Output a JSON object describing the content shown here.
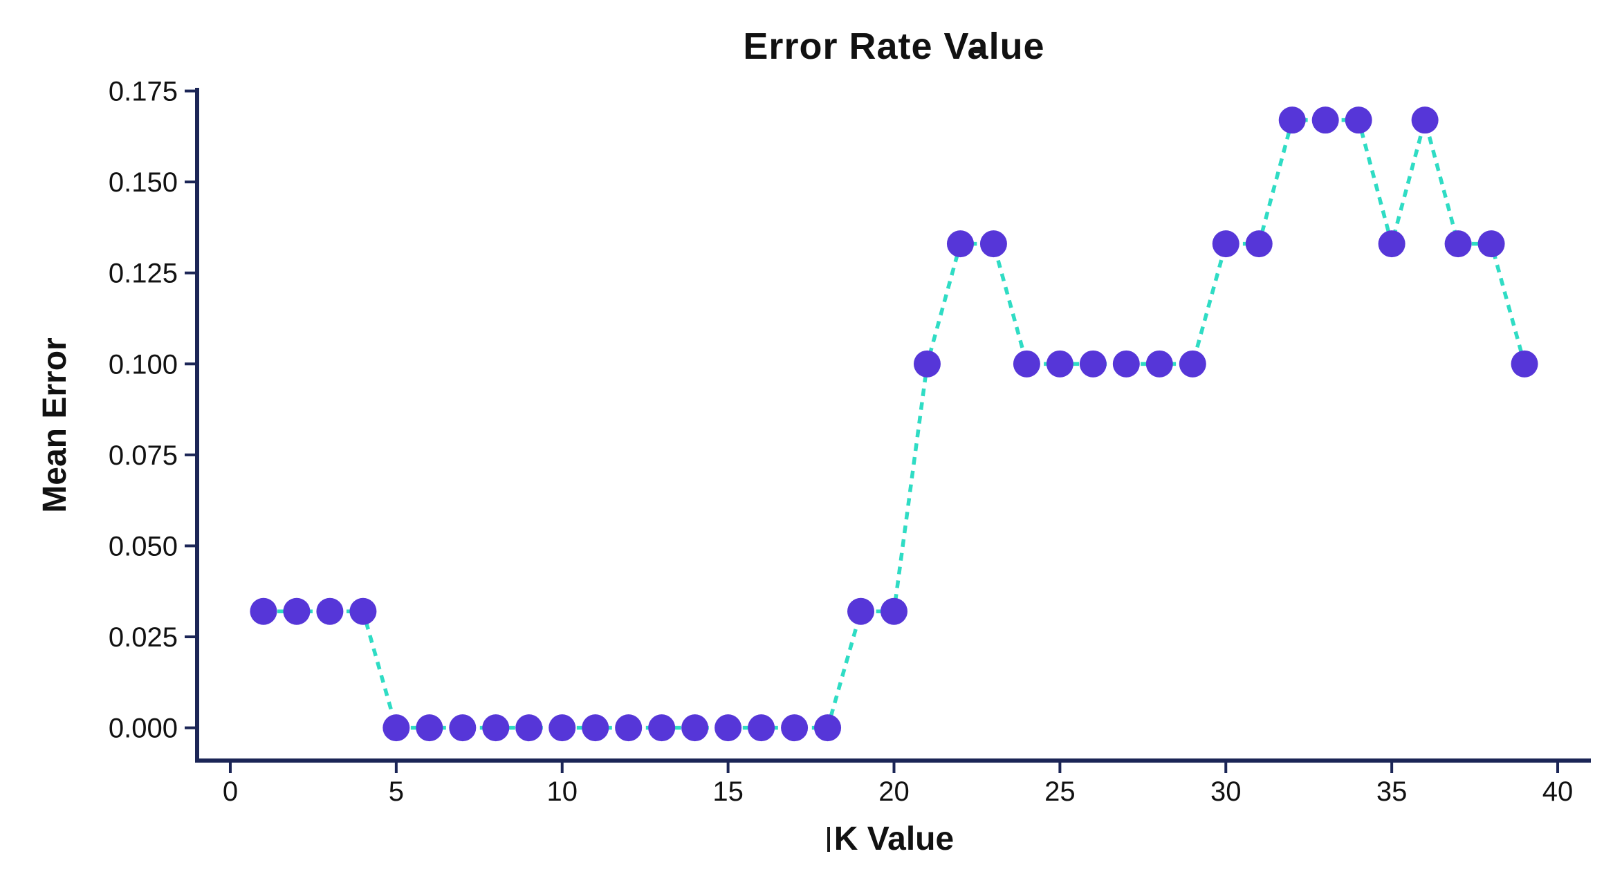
{
  "chart_data": {
    "type": "line",
    "title": "Error Rate Value",
    "xlabel": "K Value",
    "ylabel": "Mean Error",
    "x": [
      1,
      2,
      3,
      4,
      5,
      6,
      7,
      8,
      9,
      10,
      11,
      12,
      13,
      14,
      15,
      16,
      17,
      18,
      19,
      20,
      21,
      22,
      23,
      24,
      25,
      26,
      27,
      28,
      29,
      30,
      31,
      32,
      33,
      34,
      35,
      36,
      37,
      38,
      39
    ],
    "values": [
      0.032,
      0.032,
      0.032,
      0.032,
      0.0,
      0.0,
      0.0,
      0.0,
      0.0,
      0.0,
      0.0,
      0.0,
      0.0,
      0.0,
      0.0,
      0.0,
      0.0,
      0.0,
      0.032,
      0.032,
      0.1,
      0.133,
      0.133,
      0.1,
      0.1,
      0.1,
      0.1,
      0.1,
      0.1,
      0.133,
      0.133,
      0.167,
      0.167,
      0.167,
      0.133,
      0.167,
      0.133,
      0.133,
      0.1
    ],
    "x_ticks": {
      "values": [
        0,
        5,
        10,
        15,
        20,
        25,
        30,
        35,
        40
      ],
      "labels": [
        "0",
        "5",
        "10",
        "15",
        "20",
        "25",
        "30",
        "35",
        "40"
      ]
    },
    "y_ticks": {
      "values": [
        0.0,
        0.025,
        0.05,
        0.075,
        0.1,
        0.125,
        0.15,
        0.175
      ],
      "labels": [
        "0.000",
        "0.025",
        "0.050",
        "0.075",
        "0.100",
        "0.125",
        "0.150",
        "0.175"
      ]
    },
    "xlim": [
      -1,
      41
    ],
    "ylim": [
      -0.009,
      0.1753
    ],
    "grid": false,
    "legend": null,
    "line_style": "dashed",
    "marker": "circle",
    "colors": {
      "marker": "#5636d8",
      "line": "#2fdcc4",
      "spine": "#1b2556",
      "text": "#111111",
      "background": "#ffffff"
    }
  }
}
